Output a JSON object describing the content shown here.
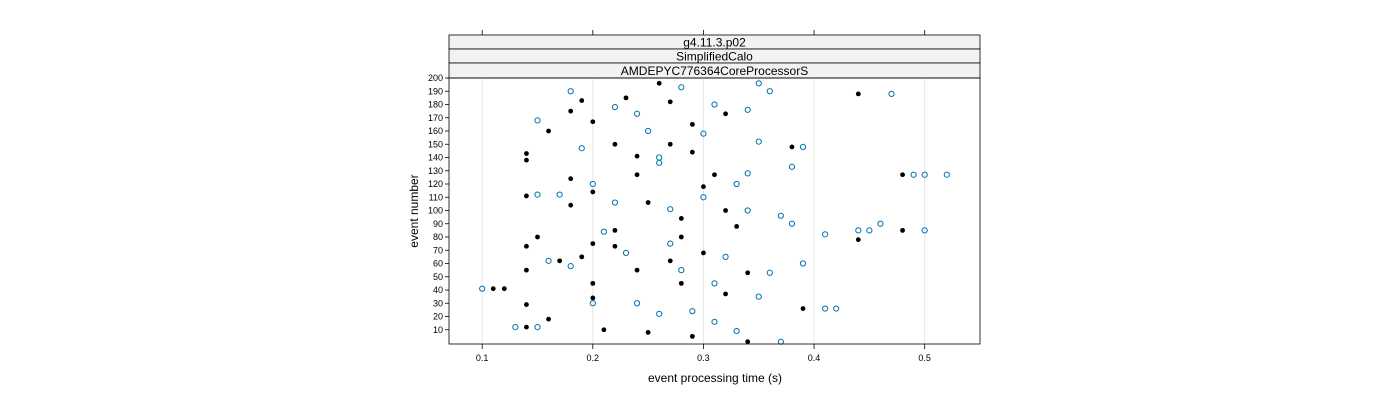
{
  "chart_data": {
    "type": "scatter",
    "strips": [
      "g4.11.3.p02",
      "SimplifiedCalo",
      "AMDEPYC776364CoreProcessorS"
    ],
    "xlabel": "event processing time (s)",
    "ylabel": "event number",
    "xlim": [
      0.07,
      0.55
    ],
    "ylim": [
      0,
      200
    ],
    "x_ticks": [
      "0.1",
      "0.2",
      "0.3",
      "0.4",
      "0.5"
    ],
    "x_tick_values": [
      0.1,
      0.2,
      0.3,
      0.4,
      0.5
    ],
    "y_ticks": [
      "10",
      "20",
      "30",
      "40",
      "50",
      "60",
      "70",
      "80",
      "90",
      "100",
      "110",
      "120",
      "130",
      "140",
      "150",
      "160",
      "170",
      "180",
      "190",
      "200"
    ],
    "y_tick_values": [
      10,
      20,
      30,
      40,
      50,
      60,
      70,
      80,
      90,
      100,
      110,
      120,
      130,
      140,
      150,
      160,
      170,
      180,
      190,
      200
    ],
    "grid": true,
    "series": [
      {
        "marker": "filled",
        "points": [
          [
            0.34,
            1
          ],
          [
            0.14,
            12
          ],
          [
            0.16,
            18
          ],
          [
            0.21,
            10
          ],
          [
            0.25,
            8
          ],
          [
            0.29,
            5
          ],
          [
            0.39,
            26
          ],
          [
            0.14,
            29
          ],
          [
            0.2,
            34
          ],
          [
            0.32,
            37
          ],
          [
            0.11,
            41
          ],
          [
            0.12,
            41
          ],
          [
            0.2,
            45
          ],
          [
            0.28,
            45
          ],
          [
            0.14,
            55
          ],
          [
            0.24,
            55
          ],
          [
            0.34,
            53
          ],
          [
            0.17,
            62
          ],
          [
            0.27,
            62
          ],
          [
            0.19,
            65
          ],
          [
            0.3,
            68
          ],
          [
            0.14,
            73
          ],
          [
            0.22,
            73
          ],
          [
            0.2,
            75
          ],
          [
            0.15,
            80
          ],
          [
            0.28,
            80
          ],
          [
            0.44,
            78
          ],
          [
            0.22,
            85
          ],
          [
            0.48,
            85
          ],
          [
            0.33,
            88
          ],
          [
            0.28,
            94
          ],
          [
            0.32,
            100
          ],
          [
            0.18,
            104
          ],
          [
            0.25,
            106
          ],
          [
            0.14,
            111
          ],
          [
            0.2,
            114
          ],
          [
            0.3,
            118
          ],
          [
            0.18,
            124
          ],
          [
            0.24,
            127
          ],
          [
            0.31,
            127
          ],
          [
            0.48,
            127
          ],
          [
            0.14,
            138
          ],
          [
            0.24,
            141
          ],
          [
            0.29,
            144
          ],
          [
            0.14,
            143
          ],
          [
            0.38,
            148
          ],
          [
            0.22,
            150
          ],
          [
            0.27,
            150
          ],
          [
            0.16,
            160
          ],
          [
            0.29,
            165
          ],
          [
            0.2,
            167
          ],
          [
            0.18,
            175
          ],
          [
            0.32,
            173
          ],
          [
            0.27,
            182
          ],
          [
            0.19,
            183
          ],
          [
            0.23,
            185
          ],
          [
            0.44,
            188
          ],
          [
            0.26,
            196
          ]
        ]
      },
      {
        "marker": "open",
        "points": [
          [
            0.1,
            41
          ],
          [
            0.13,
            12
          ],
          [
            0.15,
            12
          ],
          [
            0.16,
            62
          ],
          [
            0.18,
            58
          ],
          [
            0.2,
            30
          ],
          [
            0.26,
            22
          ],
          [
            0.31,
            16
          ],
          [
            0.33,
            9
          ],
          [
            0.37,
            1
          ],
          [
            0.41,
            26
          ],
          [
            0.42,
            26
          ],
          [
            0.35,
            35
          ],
          [
            0.36,
            53
          ],
          [
            0.39,
            60
          ],
          [
            0.44,
            85
          ],
          [
            0.45,
            85
          ],
          [
            0.46,
            90
          ],
          [
            0.5,
            85
          ],
          [
            0.41,
            82
          ],
          [
            0.38,
            90
          ],
          [
            0.34,
            100
          ],
          [
            0.37,
            96
          ],
          [
            0.15,
            112
          ],
          [
            0.17,
            112
          ],
          [
            0.2,
            120
          ],
          [
            0.34,
            128
          ],
          [
            0.38,
            133
          ],
          [
            0.52,
            127
          ],
          [
            0.5,
            127
          ],
          [
            0.49,
            127
          ],
          [
            0.15,
            168
          ],
          [
            0.18,
            190
          ],
          [
            0.24,
            173
          ],
          [
            0.28,
            193
          ],
          [
            0.31,
            180
          ],
          [
            0.36,
            190
          ],
          [
            0.47,
            188
          ],
          [
            0.39,
            148
          ],
          [
            0.35,
            152
          ],
          [
            0.26,
            140
          ],
          [
            0.22,
            106
          ],
          [
            0.27,
            75
          ],
          [
            0.31,
            45
          ],
          [
            0.24,
            30
          ],
          [
            0.28,
            55
          ],
          [
            0.23,
            68
          ],
          [
            0.3,
            110
          ],
          [
            0.33,
            120
          ],
          [
            0.25,
            160
          ],
          [
            0.22,
            178
          ],
          [
            0.19,
            147
          ],
          [
            0.34,
            176
          ],
          [
            0.3,
            158
          ],
          [
            0.27,
            101
          ],
          [
            0.32,
            65
          ],
          [
            0.21,
            84
          ],
          [
            0.26,
            136
          ],
          [
            0.29,
            24
          ],
          [
            0.35,
            196
          ]
        ]
      }
    ]
  }
}
